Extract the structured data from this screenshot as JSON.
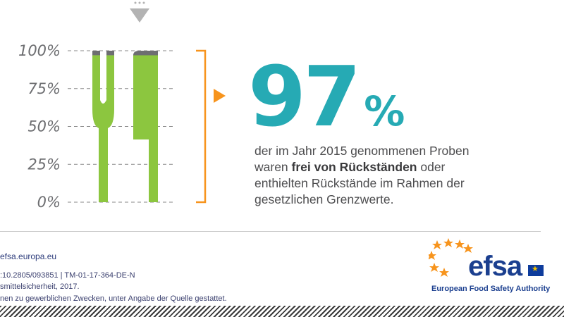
{
  "chart_data": {
    "type": "bar",
    "categories": [
      "",
      ""
    ],
    "values": [
      97,
      97
    ],
    "ylim": [
      0,
      100
    ],
    "y_ticks": [
      "0%",
      "25%",
      "50%",
      "75%",
      "100%"
    ],
    "grid": true,
    "colors": {
      "fill": "#8cc63f",
      "remainder": "#6d6e71",
      "bracket": "#f7941d",
      "grid": "#8a8a8a"
    }
  },
  "headline": {
    "number": "97",
    "sign": "%"
  },
  "statement": {
    "line1": "der im Jahr 2015 genommenen Proben",
    "line2_pre": "waren ",
    "line2_bold": "frei von Rückständen",
    "line2_post": " oder",
    "line3": "enthielten Rückstände im Rahmen der",
    "line4": "gesetzlichen Grenzwerte."
  },
  "footer": {
    "url": "efsa.europa.eu",
    "doi": ":10.2805/093851 | TM-01-17-364-DE-N",
    "copyright": "smittelsicherheit, 2017.",
    "rights": "nen zu gewerblichen Zwecken, unter Angabe der Quelle gestattet."
  },
  "logo": {
    "text": "efsa",
    "name": "European Food Safety Authority",
    "icon": "stars-arc-icon"
  },
  "colors": {
    "accent": "#26aab4",
    "brand": "#1b3f8f",
    "arrow": "#f7941d"
  }
}
